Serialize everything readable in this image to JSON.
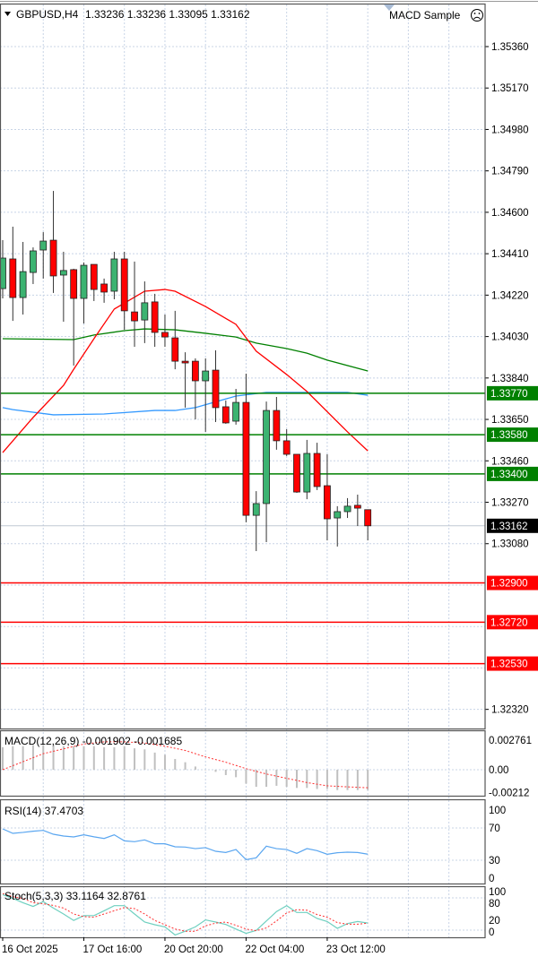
{
  "header": {
    "symbol_label": "GBPUSD,H4",
    "ohlc_label": "1.33236 1.33236 1.33095 1.33162",
    "expert_label": "MACD Sample",
    "expert_icon": "sad-face-icon",
    "menu_icon": "triangle-down-icon"
  },
  "colors": {
    "bull": "#3cb371",
    "bear": "#ff0000",
    "support_line": "#008000",
    "resistance_line": "#ff0000",
    "ma_fast": "#ff0000",
    "ma_slow": "#008000",
    "ma_blue": "#3399ff",
    "grid": "#c8d4e6",
    "macd_hist": "#c0c0c0",
    "rsi": "#5aa6f0",
    "stoch_main": "#6fd0c0",
    "stoch_signal": "#ff3030"
  },
  "chart_data": [
    {
      "type": "candlestick",
      "title": "GBPUSD,H4",
      "price_ticks": [
        "1.35360",
        "1.35170",
        "1.34980",
        "1.34790",
        "1.34600",
        "1.34410",
        "1.34220",
        "1.34030",
        "1.33840",
        "1.33650",
        "1.33460",
        "1.33270",
        "1.33080",
        "1.32320"
      ],
      "hidden_grid_ticks": [
        1.3289,
        1.327,
        1.3251
      ],
      "ylim": [
        1.3221,
        1.3545
      ],
      "grid": true,
      "date_labels": [
        {
          "bar": 0,
          "text": "16 Oct 2025"
        },
        {
          "bar": 8,
          "text": "17 Oct 16:00"
        },
        {
          "bar": 16,
          "text": "20 Oct 20:00"
        },
        {
          "bar": 24,
          "text": "22 Oct 04:00"
        },
        {
          "bar": 32,
          "text": "23 Oct 12:00"
        }
      ],
      "candles_ohlc": [
        [
          1.3425,
          1.34472,
          1.34205,
          1.3439
        ],
        [
          1.34386,
          1.34534,
          1.34102,
          1.34209
        ],
        [
          1.34209,
          1.34464,
          1.34131,
          1.34328
        ],
        [
          1.34324,
          1.34439,
          1.34271,
          1.34423
        ],
        [
          1.34427,
          1.34509,
          1.34296,
          1.34468
        ],
        [
          1.34472,
          1.34698,
          1.3423,
          1.34308
        ],
        [
          1.34312,
          1.34419,
          1.34098,
          1.34333
        ],
        [
          1.34337,
          1.34341,
          1.33897,
          1.34205
        ],
        [
          1.34205,
          1.3437,
          1.3409,
          1.34357
        ],
        [
          1.34361,
          1.34361,
          1.34193,
          1.34246
        ],
        [
          1.34271,
          1.34296,
          1.34185,
          1.34234
        ],
        [
          1.34238,
          1.34419,
          1.34201,
          1.34386
        ],
        [
          1.34386,
          1.34419,
          1.34061,
          1.34148
        ],
        [
          1.34143,
          1.34374,
          1.33983,
          1.34102
        ],
        [
          1.34106,
          1.34283,
          1.34,
          1.34185
        ],
        [
          1.34189,
          1.34226,
          1.33983,
          1.34049
        ],
        [
          1.34049,
          1.34131,
          1.33983,
          1.34028
        ],
        [
          1.34024,
          1.34148,
          1.3388,
          1.33917
        ],
        [
          1.33917,
          1.33958,
          1.33704,
          1.33909
        ],
        [
          1.33917,
          1.3393,
          1.3365,
          1.33827
        ],
        [
          1.33827,
          1.3393,
          1.33593,
          1.33872
        ],
        [
          1.33876,
          1.33967,
          1.33638,
          1.33704
        ],
        [
          1.33708,
          1.33737,
          1.3363,
          1.33634
        ],
        [
          1.33642,
          1.3379,
          1.33626,
          1.33728
        ],
        [
          1.33728,
          1.3386,
          1.33178,
          1.3321
        ],
        [
          1.3321,
          1.33321,
          1.33046,
          1.33264
        ],
        [
          1.33264,
          1.33732,
          1.33087,
          1.33691
        ],
        [
          1.33691,
          1.33753,
          1.33511,
          1.33552
        ],
        [
          1.33552,
          1.33605,
          1.33482,
          1.3349
        ],
        [
          1.3349,
          1.3349,
          1.33313,
          1.33317
        ],
        [
          1.33317,
          1.33556,
          1.33284,
          1.33494
        ],
        [
          1.33494,
          1.33543,
          1.33326,
          1.33342
        ],
        [
          1.33346,
          1.3349,
          1.33095,
          1.33194
        ],
        [
          1.33198,
          1.33252,
          1.33067,
          1.33227
        ],
        [
          1.33227,
          1.33289,
          1.33198,
          1.33252
        ],
        [
          1.33256,
          1.33305,
          1.33161,
          1.33243
        ],
        [
          1.33236,
          1.33236,
          1.33095,
          1.33162
        ]
      ],
      "ma_red": [
        [
          0,
          1.33498
        ],
        [
          3,
          1.33659
        ],
        [
          6,
          1.33806
        ],
        [
          7,
          1.3388
        ],
        [
          9,
          1.3402
        ],
        [
          11,
          1.34156
        ],
        [
          14,
          1.34238
        ],
        [
          16,
          1.34246
        ],
        [
          17,
          1.34238
        ],
        [
          20,
          1.34168
        ],
        [
          23,
          1.34086
        ],
        [
          25,
          1.33963
        ],
        [
          28,
          1.33856
        ],
        [
          30,
          1.33778
        ],
        [
          34,
          1.33593
        ],
        [
          36,
          1.33506
        ]
      ],
      "ma_green": [
        [
          0,
          1.3402
        ],
        [
          7,
          1.34016
        ],
        [
          9,
          1.34037
        ],
        [
          12,
          1.34057
        ],
        [
          14,
          1.34065
        ],
        [
          17,
          1.34061
        ],
        [
          20,
          1.34045
        ],
        [
          23,
          1.34028
        ],
        [
          25,
          1.34
        ],
        [
          28,
          1.33975
        ],
        [
          30,
          1.33954
        ],
        [
          32,
          1.33922
        ],
        [
          36,
          1.33872
        ]
      ],
      "ma_blue": [
        [
          0,
          1.33704
        ],
        [
          1,
          1.33695
        ],
        [
          5,
          1.33671
        ],
        [
          10,
          1.33675
        ],
        [
          15,
          1.33691
        ],
        [
          17,
          1.33691
        ],
        [
          19,
          1.33704
        ],
        [
          23,
          1.33757
        ],
        [
          26,
          1.33774
        ],
        [
          34,
          1.33774
        ],
        [
          36,
          1.33761
        ]
      ],
      "support_lines": [
        "1.33770",
        "1.33580",
        "1.33400"
      ],
      "resistance_lines": [
        "1.32900",
        "1.32720",
        "1.32530"
      ],
      "current_price": "1.33162"
    },
    {
      "type": "bar+line",
      "title": "MACD(12,26,9) -0.001902 -0.001685",
      "axis_labels": [
        "0.002761",
        "0.00",
        "-0.00212"
      ],
      "ylim": [
        -0.00212,
        0.002761
      ],
      "histogram": [
        0.0021,
        0.0022,
        0.0022,
        0.0023,
        0.0023,
        0.0023,
        0.0022,
        0.0022,
        0.0022,
        0.0022,
        0.0021,
        0.0021,
        0.0022,
        0.002,
        0.0019,
        0.0016,
        0.0014,
        0.001,
        0.0007,
        0.0003,
        0.0,
        -0.0002,
        -0.0005,
        -0.0007,
        -0.0013,
        -0.0016,
        -0.0016,
        -0.0015,
        -0.0016,
        -0.0017,
        -0.0017,
        -0.0018,
        -0.0018,
        -0.0019,
        -0.0019,
        -0.0019,
        -0.001902
      ],
      "signal": [
        [
          0,
          0.0
        ],
        [
          4,
          0.0015
        ],
        [
          8,
          0.0024
        ],
        [
          10,
          0.0026
        ],
        [
          12,
          0.0026
        ],
        [
          14,
          0.0025
        ],
        [
          16,
          0.0022
        ],
        [
          18,
          0.0018
        ],
        [
          20,
          0.0012
        ],
        [
          22,
          0.0007
        ],
        [
          24,
          0.0001
        ],
        [
          26,
          -0.0004
        ],
        [
          28,
          -0.0008
        ],
        [
          30,
          -0.0012
        ],
        [
          32,
          -0.0015
        ],
        [
          34,
          -0.0016
        ],
        [
          36,
          -0.001685
        ]
      ]
    },
    {
      "type": "line",
      "title": "RSI(14) 37.4703",
      "axis_labels": [
        "100",
        "70",
        "30",
        "0"
      ],
      "levels": [
        70,
        30
      ],
      "ylim": [
        0,
        100
      ],
      "values": [
        68.9,
        63.3,
        64.5,
        66,
        67,
        62.2,
        60,
        58.9,
        61.5,
        59,
        57,
        61.5,
        54,
        53,
        55.2,
        50.4,
        50.4,
        46.7,
        46.3,
        44.4,
        45.6,
        41.1,
        39.6,
        43.3,
        30.7,
        33,
        47.4,
        44.4,
        43.3,
        38.5,
        44.4,
        41.9,
        37.4,
        39.3,
        40,
        39.6,
        37.4703
      ]
    },
    {
      "type": "line",
      "title": "Stoch(5,3,3) 33.1164 32.8761",
      "axis_labels": [
        "100",
        "80",
        "20",
        "0"
      ],
      "levels": [
        80,
        20
      ],
      "main": [
        86,
        79,
        71,
        64,
        73,
        61,
        50,
        38,
        47,
        47,
        56,
        65.5,
        65.5,
        50,
        35,
        30,
        26,
        11,
        18,
        26,
        39,
        35,
        30.5,
        22,
        14,
        19.5,
        37,
        54.5,
        65.5,
        52.8,
        52.8,
        41.7,
        36,
        23.3,
        32.2,
        36,
        33.1164
      ],
      "signal": [
        88,
        82,
        79,
        71,
        69,
        66,
        61,
        50,
        45,
        44,
        50,
        56,
        62,
        60,
        50,
        38,
        30,
        22,
        18,
        18,
        28,
        33,
        35,
        29,
        22,
        19,
        24,
        37,
        52,
        58,
        57,
        49,
        44,
        34,
        31,
        31,
        32.8761
      ]
    }
  ]
}
